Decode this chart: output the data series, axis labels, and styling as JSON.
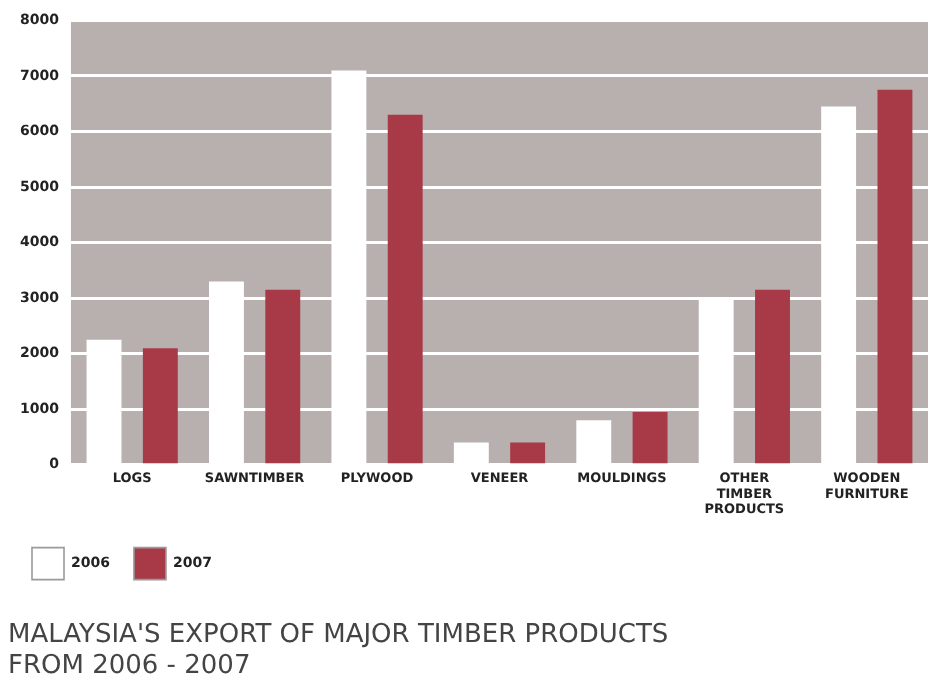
{
  "chart_data": {
    "type": "bar",
    "title": "MALAYSIA'S EXPORT OF MAJOR TIMBER PRODUCTS FROM 2006 - 2007",
    "categories": [
      "LOGS",
      "SAWNTIMBER",
      "PLYWOOD",
      "VENEER",
      "MOULDINGS",
      "OTHER TIMBER PRODUCTS",
      "WOODEN FURNITURE"
    ],
    "series": [
      {
        "name": "2006",
        "color": "#ffffff",
        "values": [
          2250,
          3300,
          7100,
          400,
          800,
          3000,
          6450
        ]
      },
      {
        "name": "2007",
        "color": "#a83a48",
        "values": [
          2100,
          3150,
          6300,
          400,
          950,
          3150,
          6750
        ]
      }
    ],
    "ylim": [
      0,
      8000
    ],
    "yticks": [
      0,
      1000,
      2000,
      3000,
      4000,
      5000,
      6000,
      7000,
      8000
    ],
    "grid": "y",
    "legend": "bottom left"
  }
}
